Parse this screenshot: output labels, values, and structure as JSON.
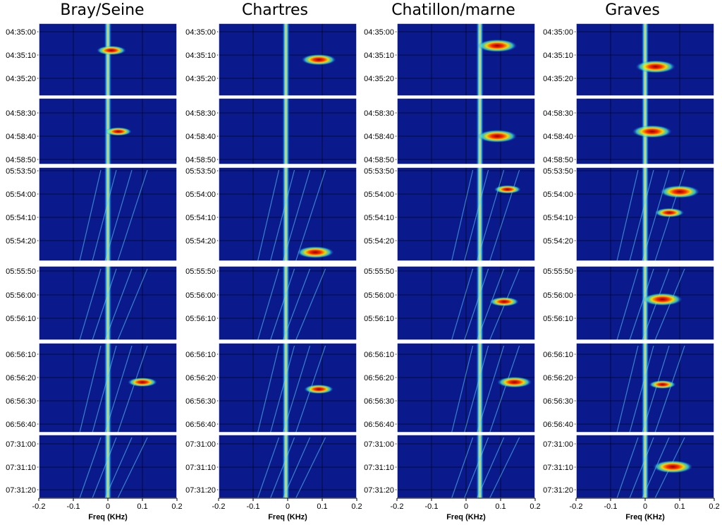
{
  "chart_data": {
    "type": "heatmap",
    "columns": [
      "Bray/Seine",
      "Chartres",
      "Chatillon/marne",
      "Graves"
    ],
    "xlabel": "Freq (KHz)",
    "xlim": [
      -0.2,
      0.2
    ],
    "xticks": [
      "-0.2",
      "-0.1",
      "0",
      "0.1",
      "0.2"
    ],
    "colors": {
      "background": "#0a1a8c",
      "grid": "#000000"
    },
    "rows": [
      {
        "ticks": [
          "04:35:00",
          "04:35:10",
          "04:35:20"
        ]
      },
      {
        "ticks": [
          "04:58:30",
          "04:58:40",
          "04:58:50"
        ]
      },
      {
        "ticks": [
          "05:53:50",
          "05:54:00",
          "05:54:10",
          "05:54:20"
        ]
      },
      {
        "ticks": [
          "05:55:50",
          "05:56:00",
          "05:56:10"
        ]
      },
      {
        "ticks": [
          "06:56:10",
          "06:56:20",
          "06:56:30",
          "06:56:40"
        ]
      },
      {
        "ticks": [
          "07:31:00",
          "07:31:10",
          "07:31:20"
        ]
      }
    ],
    "carrier_freq": [
      0.0,
      -0.005,
      0.04,
      0.0
    ],
    "echoes": [
      {
        "column": 0,
        "row": 0,
        "freq": 0.01,
        "time": "04:35:08",
        "intensity": 0.6
      },
      {
        "column": 0,
        "row": 1,
        "freq": 0.03,
        "time": "04:58:38",
        "intensity": 0.5
      },
      {
        "column": 0,
        "row": 4,
        "freq": 0.1,
        "time": "06:56:22",
        "intensity": 0.6
      },
      {
        "column": 1,
        "row": 0,
        "freq": 0.09,
        "time": "04:35:12",
        "intensity": 0.8
      },
      {
        "column": 1,
        "row": 2,
        "freq": 0.08,
        "time": "05:54:25",
        "intensity": 0.9
      },
      {
        "column": 1,
        "row": 4,
        "freq": 0.09,
        "time": "06:56:25",
        "intensity": 0.6
      },
      {
        "column": 2,
        "row": 0,
        "freq": 0.09,
        "time": "04:35:06",
        "intensity": 1.0
      },
      {
        "column": 2,
        "row": 1,
        "freq": 0.09,
        "time": "04:58:40",
        "intensity": 1.0
      },
      {
        "column": 2,
        "row": 2,
        "freq": 0.12,
        "time": "05:53:58",
        "intensity": 0.5
      },
      {
        "column": 2,
        "row": 3,
        "freq": 0.11,
        "time": "05:56:03",
        "intensity": 0.6
      },
      {
        "column": 2,
        "row": 4,
        "freq": 0.14,
        "time": "06:56:22",
        "intensity": 0.8
      },
      {
        "column": 3,
        "row": 0,
        "freq": 0.03,
        "time": "04:35:15",
        "intensity": 1.0
      },
      {
        "column": 3,
        "row": 1,
        "freq": 0.02,
        "time": "04:58:38",
        "intensity": 1.0
      },
      {
        "column": 3,
        "row": 2,
        "freq": 0.1,
        "time": "05:53:59",
        "intensity": 1.0
      },
      {
        "column": 3,
        "row": 2,
        "freq": 0.07,
        "time": "05:54:08",
        "intensity": 0.6
      },
      {
        "column": 3,
        "row": 3,
        "freq": 0.05,
        "time": "05:56:02",
        "intensity": 1.0
      },
      {
        "column": 3,
        "row": 4,
        "freq": 0.05,
        "time": "06:56:23",
        "intensity": 0.5
      },
      {
        "column": 3,
        "row": 5,
        "freq": 0.08,
        "time": "07:31:10",
        "intensity": 1.0
      }
    ]
  }
}
